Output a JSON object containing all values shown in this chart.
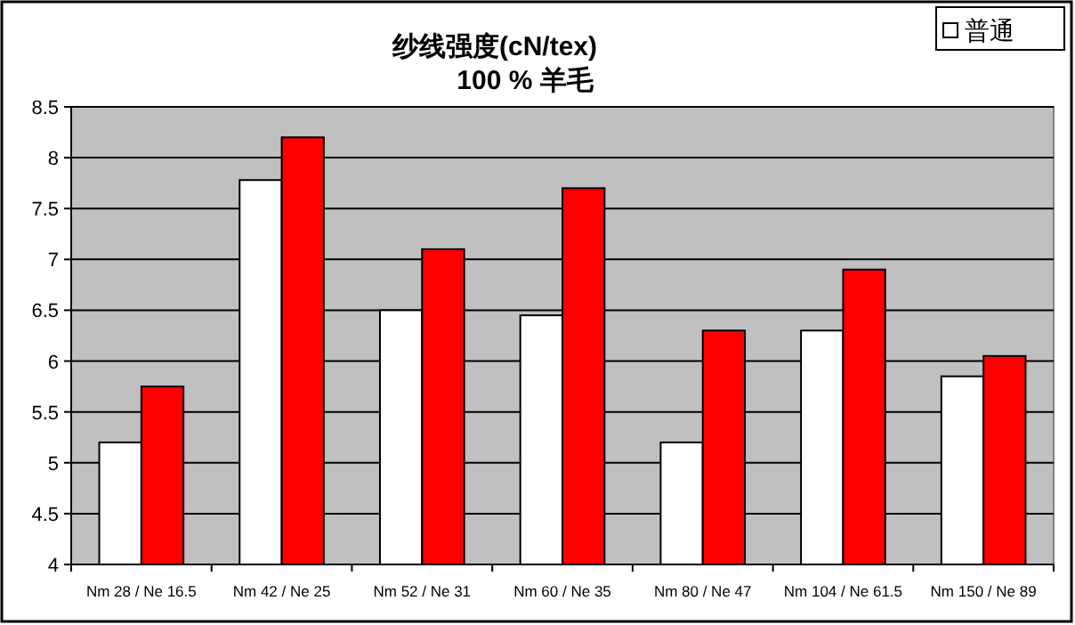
{
  "chart_data": {
    "type": "bar",
    "title": "纱线强度(cN/tex)",
    "subtitle": "100 % 羊毛",
    "categories": [
      "Nm 28 / Ne 16.5",
      "Nm 42 / Ne 25",
      "Nm 52 / Ne 31",
      "Nm 60 / Ne 35",
      "Nm 80 / Ne 47",
      "Nm 104 / Ne 61.5",
      "Nm 150 / Ne 89"
    ],
    "series": [
      {
        "name": "普通",
        "color": "#ffffff",
        "values": [
          5.2,
          7.78,
          6.5,
          6.45,
          5.2,
          6.3,
          5.85
        ]
      },
      {
        "color": "#ff0000",
        "values": [
          5.75,
          8.2,
          7.1,
          7.7,
          6.3,
          6.9,
          6.05
        ]
      }
    ],
    "ylim": [
      4,
      8.5
    ],
    "yticks": [
      4,
      4.5,
      5,
      5.5,
      6,
      6.5,
      7,
      7.5,
      8,
      8.5
    ],
    "grid": "y",
    "legend": "top right"
  }
}
